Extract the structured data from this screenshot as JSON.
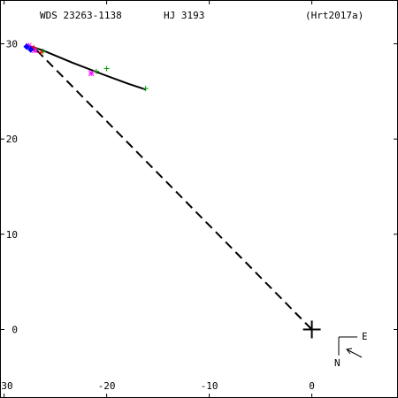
{
  "header": {
    "wds_id": "WDS 23263-1138",
    "discoverer": "HJ 3193",
    "reference": "(Hrt2017a)"
  },
  "compass": {
    "east": "E",
    "north": "N"
  },
  "chart_data": {
    "type": "scatter",
    "title": "",
    "xlabel": "",
    "ylabel": "",
    "xlim": [
      -30.4,
      8.4
    ],
    "ylim": [
      -7.2,
      34.6
    ],
    "x_reversed": false,
    "grid": false,
    "x_ticks": [
      -30,
      -20,
      -10,
      0
    ],
    "y_ticks": [
      0,
      10,
      20,
      30
    ],
    "primary": [
      0,
      0
    ],
    "orbit_line": [
      [
        -27.6,
        29.8
      ],
      [
        -26.2,
        29.3
      ],
      [
        -23.3,
        28.0
      ],
      [
        -20.4,
        26.8
      ],
      [
        -17.9,
        25.8
      ],
      [
        -16.2,
        25.2
      ]
    ],
    "dashed_line": [
      [
        -26.8,
        29.3
      ],
      [
        0,
        0
      ]
    ],
    "series": [
      {
        "color": "#00a000",
        "marker": "plus",
        "points": [
          [
            -16.2,
            25.3
          ],
          [
            -20.0,
            27.4
          ],
          [
            -21.0,
            27.1
          ],
          [
            -26.2,
            29.2
          ],
          [
            -26.9,
            29.4
          ]
        ]
      },
      {
        "color": "#ff00ff",
        "marker": "star",
        "points": [
          [
            -21.5,
            26.9
          ],
          [
            -27.3,
            29.5
          ],
          [
            -27.0,
            29.3
          ],
          [
            -27.6,
            29.8
          ]
        ]
      },
      {
        "color": "#ff0000",
        "marker": "plus",
        "points": [
          [
            -26.4,
            29.1
          ],
          [
            -27.1,
            29.6
          ]
        ]
      },
      {
        "color": "#0000ff",
        "marker": "diamond",
        "points": [
          [
            -27.8,
            29.7
          ],
          [
            -27.4,
            29.4
          ]
        ]
      }
    ]
  }
}
